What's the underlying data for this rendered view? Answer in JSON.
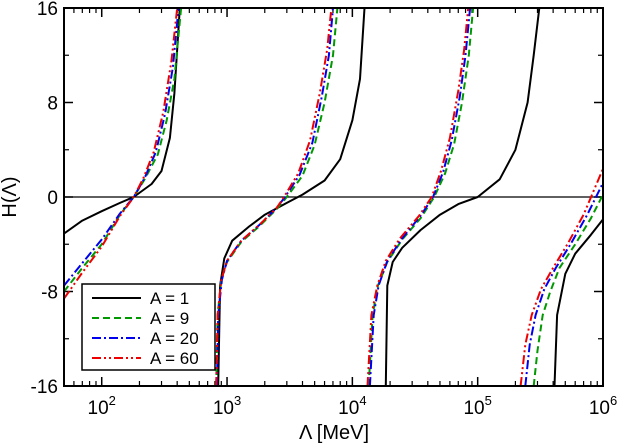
{
  "chart_data": {
    "type": "line",
    "xscale": "log",
    "xlim": [
      50,
      1000000
    ],
    "ylim": [
      -16,
      16
    ],
    "xlabel": "Λ [MeV]",
    "ylabel": "H(Λ)",
    "yticks": [
      {
        "value": -16,
        "label": "-16"
      },
      {
        "value": -8,
        "label": "-8"
      },
      {
        "value": 0,
        "label": "0"
      },
      {
        "value": 8,
        "label": "8"
      },
      {
        "value": 16,
        "label": "16"
      }
    ],
    "xticks": [
      {
        "value": 100,
        "base": "10",
        "exp": "2"
      },
      {
        "value": 1000,
        "base": "10",
        "exp": "3"
      },
      {
        "value": 10000,
        "base": "10",
        "exp": "4"
      },
      {
        "value": 100000,
        "base": "10",
        "exp": "5"
      },
      {
        "value": 1000000,
        "base": "10",
        "exp": "6"
      }
    ],
    "reference_line": {
      "y": 0
    },
    "legend": {
      "position": "bottom-left"
    },
    "series": [
      {
        "name": "A = 1",
        "color": "#000000",
        "dash": "",
        "branches": [
          [
            [
              50,
              -3.1
            ],
            [
              70,
              -2.0
            ],
            [
              100,
              -1.2
            ],
            [
              140,
              -0.5
            ],
            [
              180,
              0
            ],
            [
              250,
              1.1
            ],
            [
              300,
              2.2
            ],
            [
              350,
              5.0
            ],
            [
              380,
              8.8
            ],
            [
              420,
              16
            ]
          ],
          [
            [
              850,
              -16
            ],
            [
              880,
              -7.5
            ],
            [
              950,
              -5.2
            ],
            [
              1100,
              -3.7
            ],
            [
              1500,
              -2.5
            ],
            [
              2000,
              -1.5
            ],
            [
              3000,
              -0.5
            ],
            [
              4000,
              0.2
            ],
            [
              6000,
              1.4
            ],
            [
              8000,
              3.2
            ],
            [
              10000,
              6.5
            ],
            [
              11500,
              10
            ],
            [
              12500,
              16
            ]
          ],
          [
            [
              18500,
              -16
            ],
            [
              19000,
              -7.5
            ],
            [
              21000,
              -5.5
            ],
            [
              25000,
              -4.3
            ],
            [
              35000,
              -2.8
            ],
            [
              50000,
              -1.5
            ],
            [
              70000,
              -0.6
            ],
            [
              100000,
              0
            ],
            [
              150000,
              1.5
            ],
            [
              200000,
              4.0
            ],
            [
              250000,
              8.0
            ],
            [
              280000,
              12
            ],
            [
              310000,
              16
            ]
          ],
          [
            [
              410000,
              -16
            ],
            [
              430000,
              -10
            ],
            [
              500000,
              -6.5
            ],
            [
              600000,
              -4.8
            ],
            [
              800000,
              -3.2
            ],
            [
              1000000,
              -1.9
            ]
          ]
        ]
      },
      {
        "name": "A = 9",
        "color": "#009900",
        "dash": "7,4",
        "branches": [
          [
            [
              50,
              -8.0
            ],
            [
              70,
              -6.0
            ],
            [
              100,
              -4.0
            ],
            [
              140,
              -1.5
            ],
            [
              180,
              0
            ],
            [
              220,
              1.5
            ],
            [
              280,
              3.6
            ],
            [
              330,
              6.5
            ],
            [
              380,
              10
            ],
            [
              430,
              16
            ]
          ],
          [
            [
              820,
              -16
            ],
            [
              840,
              -10
            ],
            [
              900,
              -7.0
            ],
            [
              1000,
              -5.5
            ],
            [
              1300,
              -3.8
            ],
            [
              1800,
              -2.5
            ],
            [
              2500,
              -1.0
            ],
            [
              3000,
              0
            ],
            [
              4000,
              1.8
            ],
            [
              5000,
              4.4
            ],
            [
              6000,
              8.0
            ],
            [
              7000,
              12
            ],
            [
              7600,
              16
            ]
          ],
          [
            [
              13500,
              -16
            ],
            [
              14500,
              -10
            ],
            [
              16000,
              -7.5
            ],
            [
              19000,
              -5.5
            ],
            [
              25000,
              -3.6
            ],
            [
              35000,
              -1.8
            ],
            [
              45000,
              0
            ],
            [
              55000,
              2.0
            ],
            [
              65000,
              4.5
            ],
            [
              75000,
              8.0
            ],
            [
              85000,
              12
            ],
            [
              92000,
              16
            ]
          ],
          [
            [
              280000,
              -16
            ],
            [
              300000,
              -13
            ],
            [
              330000,
              -10
            ],
            [
              380000,
              -8
            ],
            [
              450000,
              -6
            ],
            [
              600000,
              -4
            ],
            [
              800000,
              -1.8
            ],
            [
              1000000,
              0.2
            ]
          ]
        ]
      },
      {
        "name": "A = 20",
        "color": "#0000ee",
        "dash": "9,3,2,3",
        "branches": [
          [
            [
              50,
              -7.5
            ],
            [
              70,
              -5.6
            ],
            [
              100,
              -3.6
            ],
            [
              140,
              -1.4
            ],
            [
              180,
              0
            ],
            [
              220,
              1.6
            ],
            [
              270,
              3.8
            ],
            [
              320,
              7.0
            ],
            [
              370,
              11
            ],
            [
              410,
              16
            ]
          ],
          [
            [
              830,
              -16
            ],
            [
              850,
              -10
            ],
            [
              910,
              -7.0
            ],
            [
              1000,
              -5.4
            ],
            [
              1300,
              -3.7
            ],
            [
              1800,
              -2.4
            ],
            [
              2500,
              -0.9
            ],
            [
              2900,
              0
            ],
            [
              3800,
              1.9
            ],
            [
              4800,
              4.6
            ],
            [
              5700,
              8.5
            ],
            [
              6500,
              12
            ],
            [
              7000,
              16
            ]
          ],
          [
            [
              13800,
              -16
            ],
            [
              14800,
              -10
            ],
            [
              16200,
              -7.5
            ],
            [
              19000,
              -5.4
            ],
            [
              25000,
              -3.5
            ],
            [
              35000,
              -1.6
            ],
            [
              44000,
              0
            ],
            [
              53000,
              2.1
            ],
            [
              62000,
              4.8
            ],
            [
              72000,
              8.5
            ],
            [
              80000,
              12
            ],
            [
              87000,
              16
            ]
          ],
          [
            [
              240000,
              -16
            ],
            [
              260000,
              -12.5
            ],
            [
              290000,
              -10
            ],
            [
              340000,
              -7.8
            ],
            [
              420000,
              -6
            ],
            [
              550000,
              -4
            ],
            [
              750000,
              -1.5
            ],
            [
              1000000,
              1.2
            ]
          ]
        ]
      },
      {
        "name": "A = 60",
        "color": "#ee0000",
        "dash": "9,3,2,3,2,3",
        "branches": [
          [
            [
              50,
              -8.6
            ],
            [
              70,
              -6.4
            ],
            [
              100,
              -4.2
            ],
            [
              140,
              -1.6
            ],
            [
              180,
              0
            ],
            [
              215,
              1.6
            ],
            [
              260,
              3.8
            ],
            [
              310,
              7.2
            ],
            [
              360,
              11.5
            ],
            [
              400,
              16
            ]
          ],
          [
            [
              820,
              -16
            ],
            [
              840,
              -10
            ],
            [
              900,
              -7.0
            ],
            [
              1000,
              -5.4
            ],
            [
              1300,
              -3.7
            ],
            [
              1800,
              -2.4
            ],
            [
              2500,
              -0.9
            ],
            [
              2850,
              0
            ],
            [
              3700,
              2.0
            ],
            [
              4600,
              4.8
            ],
            [
              5500,
              8.8
            ],
            [
              6300,
              12.5
            ],
            [
              6800,
              16
            ]
          ],
          [
            [
              13200,
              -16
            ],
            [
              14200,
              -10
            ],
            [
              15800,
              -7.5
            ],
            [
              18500,
              -5.4
            ],
            [
              24000,
              -3.5
            ],
            [
              34000,
              -1.6
            ],
            [
              43000,
              0
            ],
            [
              51000,
              2.2
            ],
            [
              60000,
              5.0
            ],
            [
              70000,
              9.0
            ],
            [
              78000,
              12.5
            ],
            [
              84000,
              16
            ]
          ],
          [
            [
              220000,
              -16
            ],
            [
              240000,
              -12.5
            ],
            [
              270000,
              -10
            ],
            [
              320000,
              -7.8
            ],
            [
              400000,
              -6
            ],
            [
              520000,
              -4
            ],
            [
              700000,
              -1.5
            ],
            [
              1000000,
              2.4
            ]
          ]
        ]
      }
    ]
  }
}
